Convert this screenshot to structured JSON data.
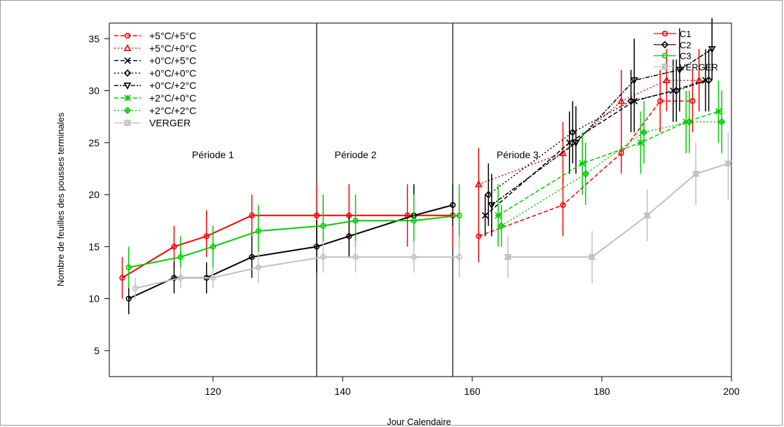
{
  "chart_data": {
    "type": "line",
    "title": "",
    "xlabel": "Jour Calendaire",
    "ylabel": "Nombre de feuilles des pousses terminales",
    "xlim": [
      104,
      200
    ],
    "ylim": [
      2.5,
      36.5
    ],
    "x_ticks": [
      120,
      140,
      160,
      180,
      200
    ],
    "y_ticks": [
      5,
      10,
      15,
      20,
      25,
      30,
      35
    ],
    "grid": false,
    "legend_position": "top-left",
    "period_dividers": [
      136,
      157
    ],
    "period_labels": [
      {
        "text": "Période 1",
        "x": 120,
        "y": 23.5
      },
      {
        "text": "Période 2",
        "x": 142,
        "y": 23.5
      },
      {
        "text": "Période 3",
        "x": 167,
        "y": 23.5
      }
    ],
    "legend_main": [
      {
        "label": "+5°C/+5°C",
        "color": "#ff0000",
        "dash": "6,3",
        "marker": "circle"
      },
      {
        "label": "+5°C/+0°C",
        "color": "#ff0000",
        "dash": "2,3",
        "marker": "triangle"
      },
      {
        "label": "+0°C/+5°C",
        "color": "#000000",
        "dash": "6,3",
        "marker": "x"
      },
      {
        "label": "+0°C/+0°C",
        "color": "#000000",
        "dash": "2,3",
        "marker": "diamond"
      },
      {
        "label": "+0°C/+2°C",
        "color": "#000000",
        "dash": "6,2,2,2",
        "marker": "triangle-down"
      },
      {
        "label": "+2°C/+0°C",
        "color": "#00cc00",
        "dash": "6,3",
        "marker": "star"
      },
      {
        "label": "+2°C/+2°C",
        "color": "#00cc00",
        "dash": "2,3",
        "marker": "diamond-plus"
      },
      {
        "label": "VERGER",
        "color": "#c0c0c0",
        "dash": "",
        "marker": "hourglass"
      }
    ],
    "legend_secondary": [
      {
        "label": "C1",
        "color": "#ff0000",
        "marker": "circle"
      },
      {
        "label": "C2",
        "color": "#000000",
        "marker": "diamond"
      },
      {
        "label": "C3",
        "color": "#00cc00",
        "marker": "circle"
      },
      {
        "label": "VERGER",
        "color": "#c0c0c0",
        "marker": "hourglass"
      }
    ],
    "series": [
      {
        "name": "C1",
        "color": "#ff0000",
        "marker": "circle",
        "dash": "",
        "width": 2,
        "points": [
          [
            106,
            12,
            10,
            14
          ],
          [
            114,
            15,
            13,
            17
          ],
          [
            119,
            16,
            14,
            18.5
          ],
          [
            126,
            18,
            16,
            20
          ],
          [
            136,
            18,
            15,
            21
          ],
          [
            141,
            18,
            15,
            21
          ],
          [
            150,
            18,
            15,
            21
          ],
          [
            157,
            18,
            15,
            20
          ]
        ]
      },
      {
        "name": "C2",
        "color": "#000000",
        "marker": "circle",
        "dash": "",
        "width": 2,
        "points": [
          [
            107,
            10,
            8.5,
            11.5
          ],
          [
            114,
            12,
            10.5,
            13.5
          ],
          [
            119,
            12,
            10.5,
            13.5
          ],
          [
            126,
            14,
            12,
            16
          ],
          [
            136,
            15,
            12.5,
            17.5
          ],
          [
            141,
            16,
            14,
            18
          ],
          [
            151,
            18,
            15,
            21
          ],
          [
            157,
            19,
            17,
            21
          ]
        ]
      },
      {
        "name": "C3",
        "color": "#00cc00",
        "marker": "circle",
        "dash": "",
        "width": 2,
        "points": [
          [
            107,
            13,
            11,
            15
          ],
          [
            115,
            14,
            12,
            16
          ],
          [
            120,
            15,
            13,
            17
          ],
          [
            127,
            16.5,
            14,
            19
          ],
          [
            137,
            17,
            14,
            20
          ],
          [
            142,
            17.5,
            15,
            20
          ],
          [
            151,
            17.5,
            15,
            20
          ],
          [
            158,
            18,
            15,
            21
          ]
        ]
      },
      {
        "name": "VERGER",
        "color": "#c0c0c0",
        "marker": "circle",
        "dash": "",
        "width": 2,
        "points": [
          [
            108,
            11,
            10,
            12
          ],
          [
            115,
            12,
            11,
            13
          ],
          [
            120,
            12,
            11,
            13
          ],
          [
            127,
            13,
            11.5,
            14.5
          ],
          [
            137,
            14,
            12.5,
            15.5
          ],
          [
            142,
            14,
            12.5,
            15.5
          ],
          [
            151,
            14,
            12.5,
            15.5
          ],
          [
            158,
            14,
            12,
            16
          ]
        ]
      },
      {
        "name": "+5°C/+5°C",
        "color": "#ff0000",
        "marker": "circle",
        "dash": "6,3",
        "width": 1.5,
        "points": [
          [
            161,
            16,
            13.5,
            18.5
          ],
          [
            174,
            19,
            16,
            22
          ],
          [
            183,
            24,
            22,
            26
          ],
          [
            189,
            29,
            26,
            32
          ],
          [
            194,
            29,
            26,
            32
          ]
        ]
      },
      {
        "name": "+5°C/+0°C",
        "color": "#ff0000",
        "marker": "triangle",
        "dash": "2,3",
        "width": 1.5,
        "points": [
          [
            161,
            21,
            18,
            24.5
          ],
          [
            174,
            24,
            21,
            27
          ],
          [
            183,
            29,
            26,
            32
          ],
          [
            190,
            31,
            28,
            34
          ],
          [
            195,
            31,
            28,
            34
          ]
        ]
      },
      {
        "name": "+0°C/+5°C",
        "color": "#000000",
        "marker": "x",
        "dash": "6,3",
        "width": 1.5,
        "points": [
          [
            162,
            18,
            16,
            20
          ],
          [
            175,
            25,
            22,
            28
          ],
          [
            185,
            29,
            26,
            32
          ],
          [
            191,
            30,
            27,
            33
          ],
          [
            196,
            31,
            28,
            34
          ]
        ]
      },
      {
        "name": "+0°C/+0°C",
        "color": "#000000",
        "marker": "diamond",
        "dash": "2,3",
        "width": 1.5,
        "points": [
          [
            162.5,
            20,
            17,
            23
          ],
          [
            175.5,
            26,
            23,
            29
          ],
          [
            184.5,
            29,
            26,
            32
          ],
          [
            191.5,
            30,
            27,
            33
          ],
          [
            196.5,
            31,
            28,
            34
          ]
        ]
      },
      {
        "name": "+0°C/+2°C",
        "color": "#000000",
        "marker": "triangle-down",
        "dash": "6,2,2,2",
        "width": 1.5,
        "points": [
          [
            163,
            19,
            16,
            22
          ],
          [
            176,
            25,
            22,
            28.5
          ],
          [
            185,
            31,
            27,
            35
          ],
          [
            192,
            32,
            28,
            36
          ],
          [
            197,
            34,
            31,
            37
          ]
        ]
      },
      {
        "name": "+2°C/+0°C",
        "color": "#00cc00",
        "marker": "star",
        "dash": "6,3",
        "width": 1.5,
        "points": [
          [
            164,
            18,
            15,
            21
          ],
          [
            177,
            23,
            20,
            26
          ],
          [
            186,
            25,
            22,
            28
          ],
          [
            193,
            27,
            24,
            30
          ],
          [
            198,
            28,
            25,
            31
          ]
        ]
      },
      {
        "name": "+2°C/+2°C",
        "color": "#00cc00",
        "marker": "diamond-plus",
        "dash": "2,3",
        "width": 1.5,
        "points": [
          [
            164.5,
            17,
            15,
            19
          ],
          [
            177.5,
            22,
            19,
            25
          ],
          [
            186.5,
            26,
            23,
            29
          ],
          [
            193.5,
            27,
            24,
            30
          ],
          [
            198.5,
            27,
            24,
            30
          ]
        ]
      },
      {
        "name": "VERGER",
        "color": "#c0c0c0",
        "marker": "hourglass",
        "dash": "",
        "width": 2,
        "points": [
          [
            165.5,
            14,
            12,
            16
          ],
          [
            178.5,
            14,
            11.5,
            16.5
          ],
          [
            187,
            18,
            15.5,
            20.5
          ],
          [
            194.5,
            22,
            19,
            25
          ],
          [
            199.5,
            23,
            19.5,
            26
          ]
        ]
      }
    ]
  }
}
